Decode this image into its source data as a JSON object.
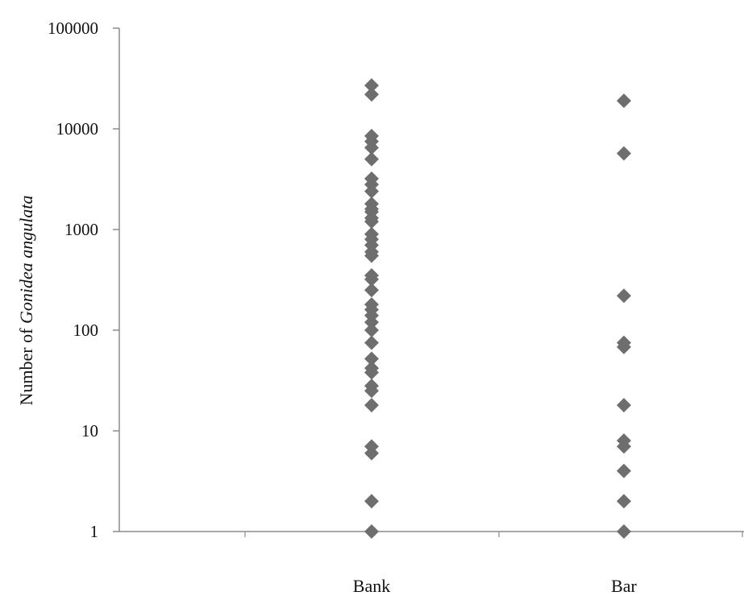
{
  "chart_data": {
    "type": "scatter",
    "title": "",
    "xlabel": "",
    "ylabel_prefix": "Number of ",
    "ylabel_italic": "Gonidea angulata",
    "yscale": "log",
    "ylim": [
      1,
      100000
    ],
    "y_ticks": [
      1,
      10,
      100,
      1000,
      10000,
      100000
    ],
    "y_tick_labels": [
      "1",
      "10",
      "100",
      "1000",
      "10000",
      "100000"
    ],
    "categories": [
      "Bank",
      "Bar"
    ],
    "grid": false,
    "legend": "none",
    "marker": "diamond",
    "colors": {
      "marker": "#6e6e6e",
      "axis": "#8c8c8c"
    },
    "series": [
      {
        "category": "Bank",
        "values": [
          27000,
          22000,
          8500,
          7500,
          6500,
          5000,
          3200,
          2800,
          2400,
          1800,
          1600,
          1500,
          1300,
          1200,
          900,
          800,
          700,
          600,
          550,
          350,
          320,
          250,
          180,
          160,
          140,
          120,
          100,
          75,
          52,
          42,
          38,
          28,
          25,
          18,
          7,
          6,
          2,
          1
        ]
      },
      {
        "category": "Bar",
        "values": [
          19000,
          5700,
          220,
          75,
          68,
          18,
          8,
          7,
          4,
          2,
          1
        ]
      }
    ]
  }
}
